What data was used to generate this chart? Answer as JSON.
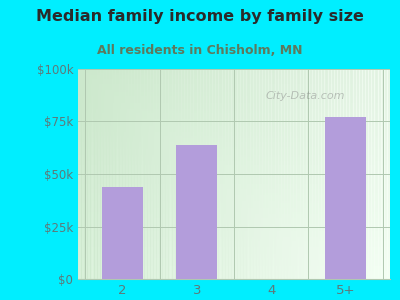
{
  "categories": [
    "2",
    "3",
    "4",
    "5+"
  ],
  "values": [
    44000,
    64000,
    0,
    77000
  ],
  "bar_color": "#b39ddb",
  "title": "Median family income by family size",
  "subtitle": "All residents in Chisholm, MN",
  "title_color": "#2a2a2a",
  "subtitle_color": "#5d7a5d",
  "background_color": "#00eeff",
  "plot_bg_color_topleft": "#d4edda",
  "plot_bg_color_right": "#f5fff5",
  "plot_bg_color_bottom": "#ffffff",
  "ytick_labels": [
    "$0",
    "$25k",
    "$50k",
    "$75k",
    "$100k"
  ],
  "ytick_values": [
    0,
    25000,
    50000,
    75000,
    100000
  ],
  "ylim": [
    0,
    100000
  ],
  "gridline_color": "#b0c8b0",
  "tick_color": "#5d7a7a",
  "watermark": "City-Data.com",
  "bar_width": 0.55
}
